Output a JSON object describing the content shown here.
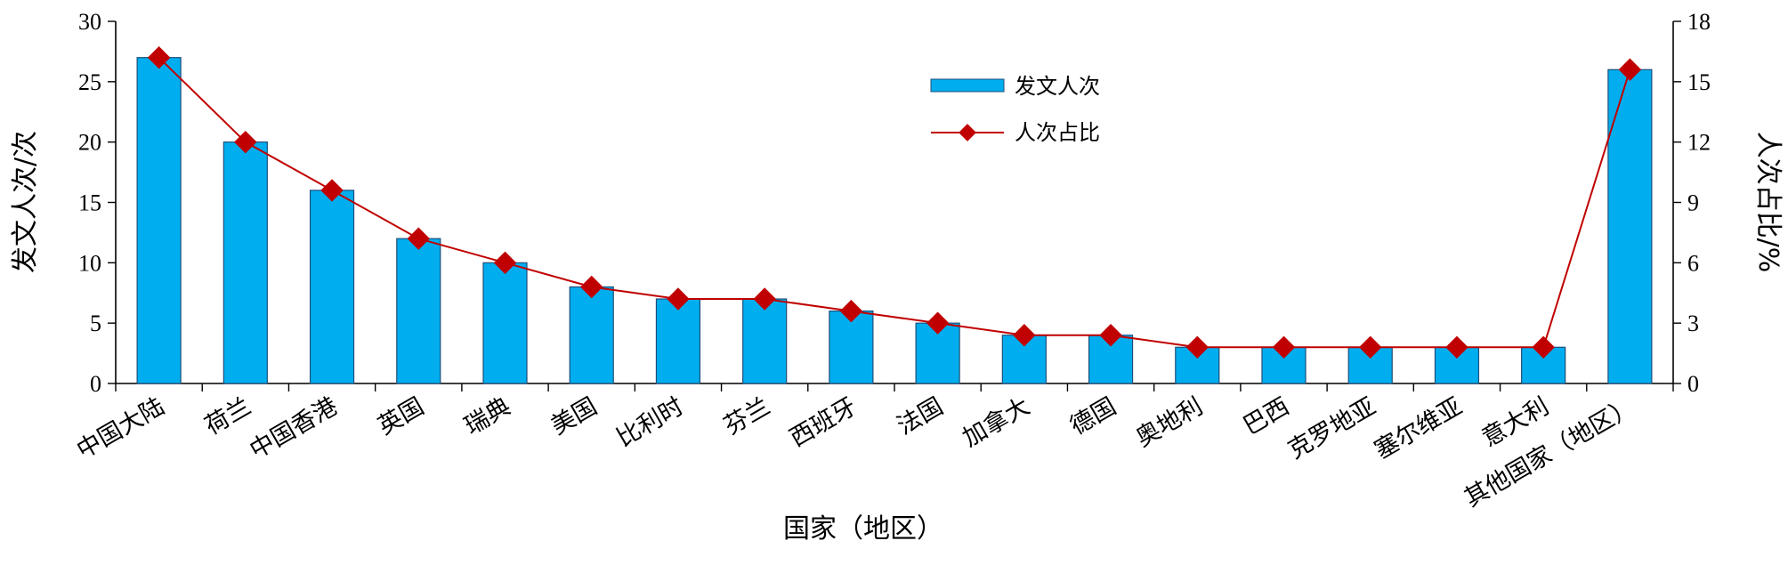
{
  "chart_data": {
    "type": "bar+line",
    "xlabel": "国家（地区）",
    "ylabel_left": "发文人次/次",
    "ylabel_right": "人次占比/%",
    "ylim_left": [
      0,
      30
    ],
    "yticks_left": [
      "0",
      "5",
      "10",
      "15",
      "20",
      "25",
      "30"
    ],
    "ylim_right": [
      0,
      18
    ],
    "yticks_right": [
      "0",
      "3",
      "6",
      "9",
      "12",
      "15",
      "18"
    ],
    "categories": [
      "中国大陆",
      "荷兰",
      "中国香港",
      "英国",
      "瑞典",
      "美国",
      "比利时",
      "芬兰",
      "西班牙",
      "法国",
      "加拿大",
      "德国",
      "奥地利",
      "巴西",
      "克罗地亚",
      "塞尔维亚",
      "意大利",
      "其他国家（地区）"
    ],
    "series": [
      {
        "name": "发文人次",
        "type": "bar",
        "axis": "left",
        "color": "#00AEEF",
        "values": [
          27,
          20,
          16,
          12,
          10,
          8,
          7,
          7,
          6,
          5,
          4,
          4,
          3,
          3,
          3,
          3,
          3,
          26
        ]
      },
      {
        "name": "人次占比",
        "type": "line",
        "axis": "right",
        "color": "#C00000",
        "values": [
          16.2,
          12.0,
          9.6,
          7.2,
          6.0,
          4.8,
          4.2,
          4.2,
          3.6,
          3.0,
          2.4,
          2.4,
          1.8,
          1.8,
          1.8,
          1.8,
          1.8,
          15.6
        ]
      }
    ],
    "legend_position": "top-center",
    "grid": false
  }
}
